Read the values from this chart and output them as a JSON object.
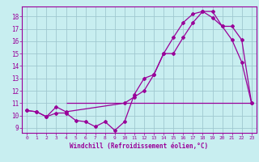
{
  "xlabel": "Windchill (Refroidissement éolien,°C)",
  "bg_color": "#c8eef0",
  "grid_color": "#a0c8d0",
  "line_color": "#990099",
  "xlim": [
    -0.5,
    23.5
  ],
  "ylim": [
    8.6,
    18.8
  ],
  "yticks": [
    9,
    10,
    11,
    12,
    13,
    14,
    15,
    16,
    17,
    18
  ],
  "xticks": [
    0,
    1,
    2,
    3,
    4,
    5,
    6,
    7,
    8,
    9,
    10,
    11,
    12,
    13,
    14,
    15,
    16,
    17,
    18,
    19,
    20,
    21,
    22,
    23
  ],
  "line1_x": [
    0,
    1,
    2,
    3,
    4,
    5,
    6,
    7,
    8,
    9,
    10,
    11,
    12,
    13,
    14,
    15,
    16,
    17,
    18,
    19,
    20,
    21,
    22,
    23
  ],
  "line1_y": [
    10.4,
    10.3,
    9.9,
    10.2,
    10.2,
    9.6,
    9.5,
    9.1,
    9.5,
    8.8,
    9.5,
    11.7,
    13.0,
    13.3,
    15.0,
    16.3,
    17.5,
    18.2,
    18.4,
    17.9,
    17.2,
    16.1,
    14.3,
    11.0
  ],
  "line2_x": [
    0,
    1,
    2,
    3,
    4,
    10,
    11,
    12,
    13,
    14,
    15,
    16,
    17,
    18,
    19,
    20,
    21,
    22,
    23
  ],
  "line2_y": [
    10.4,
    10.3,
    9.9,
    10.7,
    10.3,
    11.0,
    11.5,
    12.0,
    13.3,
    15.0,
    15.0,
    16.3,
    17.5,
    18.4,
    18.4,
    17.2,
    17.2,
    16.1,
    11.0
  ],
  "hline_y": 11.0,
  "hline_x_start": 4,
  "hline_x_end": 23
}
